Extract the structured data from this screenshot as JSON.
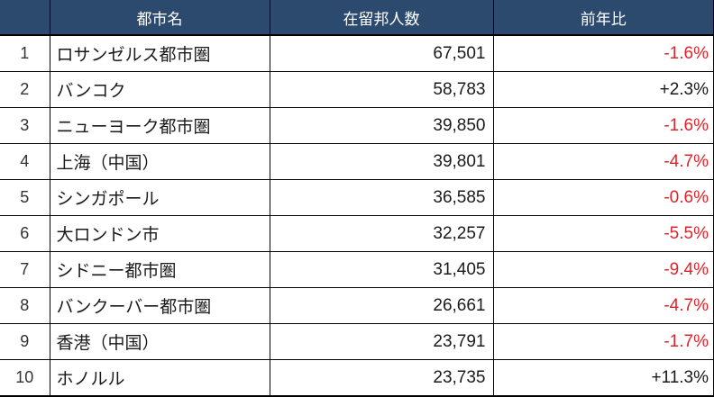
{
  "colors": {
    "header_bg": "#2b4a6d",
    "header_text": "#ffffff",
    "body_text": "#1a1a1a",
    "negative_change_text": "#e0242a",
    "border": "#000000",
    "row_bg": "#ffffff"
  },
  "table": {
    "columns": [
      {
        "key": "rank",
        "label": ""
      },
      {
        "key": "city",
        "label": "都市名"
      },
      {
        "key": "count",
        "label": "在留邦人数"
      },
      {
        "key": "yoy",
        "label": "前年比"
      }
    ],
    "rows": [
      {
        "rank": "1",
        "city": "ロサンゼルス都市圏",
        "count": "67,501",
        "yoy": "-1.6%",
        "trend": "down"
      },
      {
        "rank": "2",
        "city": "バンコク",
        "count": "58,783",
        "yoy": "+2.3%",
        "trend": "up"
      },
      {
        "rank": "3",
        "city": "ニューヨーク都市圏",
        "count": "39,850",
        "yoy": "-1.6%",
        "trend": "down"
      },
      {
        "rank": "4",
        "city": "上海（中国）",
        "count": "39,801",
        "yoy": "-4.7%",
        "trend": "down"
      },
      {
        "rank": "5",
        "city": "シンガポール",
        "count": "36,585",
        "yoy": "-0.6%",
        "trend": "down"
      },
      {
        "rank": "6",
        "city": "大ロンドン市",
        "count": "32,257",
        "yoy": "-5.5%",
        "trend": "down"
      },
      {
        "rank": "7",
        "city": "シドニー都市圏",
        "count": "31,405",
        "yoy": "-9.4%",
        "trend": "down"
      },
      {
        "rank": "8",
        "city": "バンクーバー都市圏",
        "count": "26,661",
        "yoy": "-4.7%",
        "trend": "down"
      },
      {
        "rank": "9",
        "city": "香港（中国）",
        "count": "23,791",
        "yoy": "-1.7%",
        "trend": "down"
      },
      {
        "rank": "10",
        "city": "ホノルル",
        "count": "23,735",
        "yoy": "+11.3%",
        "trend": "up"
      }
    ]
  },
  "chart_data": {
    "type": "table",
    "title": "",
    "columns": [
      "",
      "都市名",
      "在留邦人数",
      "前年比"
    ],
    "rows": [
      [
        1,
        "ロサンゼルス都市圏",
        67501,
        "-1.6%"
      ],
      [
        2,
        "バンコク",
        58783,
        "+2.3%"
      ],
      [
        3,
        "ニューヨーク都市圏",
        39850,
        "-1.6%"
      ],
      [
        4,
        "上海（中国）",
        39801,
        "-4.7%"
      ],
      [
        5,
        "シンガポール",
        36585,
        "-0.6%"
      ],
      [
        6,
        "大ロンドン市",
        32257,
        "-5.5%"
      ],
      [
        7,
        "シドニー都市圏",
        31405,
        "-9.4%"
      ],
      [
        8,
        "バンクーバー都市圏",
        26661,
        "-4.7%"
      ],
      [
        9,
        "香港（中国）",
        23791,
        "-1.7%"
      ],
      [
        10,
        "ホノルル",
        23735,
        "+11.3%"
      ]
    ]
  }
}
